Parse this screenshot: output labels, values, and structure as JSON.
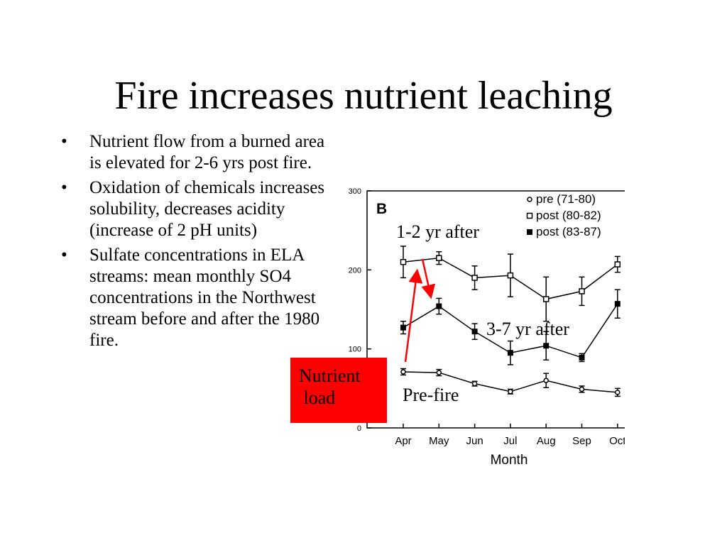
{
  "slide": {
    "title": "Fire increases nutrient leaching",
    "bullets": [
      "Nutrient flow from a burned area is elevated for 2-6 yrs post fire.",
      "Oxidation of chemicals increases solubility, decreases acidity (increase of 2 pH units)",
      "Sulfate concentrations in ELA streams: mean monthly SO4 concentrations in the Northwest stream before and after the 1980 fire."
    ],
    "nutrient_load_label": "Nutrient\n load"
  },
  "chart_data": {
    "type": "line",
    "panel_label": "B",
    "xlabel": "Month",
    "ylabel": "",
    "categories": [
      "Apr",
      "May",
      "Jun",
      "Jul",
      "Aug",
      "Sep",
      "Oct"
    ],
    "yticks": [
      0,
      100,
      200,
      300
    ],
    "ylim": [
      0,
      300
    ],
    "grid": false,
    "legend_position": "top-right",
    "series": [
      {
        "name": "pre (71-80)",
        "marker": "open-small",
        "values": [
          71,
          70,
          56,
          46,
          60,
          49,
          45
        ],
        "errors": [
          4,
          4,
          3,
          3,
          9,
          4,
          5
        ]
      },
      {
        "name": "post (80-82)",
        "marker": "open-square",
        "values": [
          210,
          215,
          190,
          193,
          163,
          173,
          207
        ],
        "errors": [
          20,
          8,
          15,
          27,
          28,
          18,
          10
        ]
      },
      {
        "name": "post (83-87)",
        "marker": "filled-square",
        "values": [
          127,
          154,
          122,
          95,
          104,
          89,
          157
        ],
        "errors": [
          8,
          10,
          10,
          15,
          18,
          5,
          18
        ]
      }
    ],
    "annotations": [
      {
        "text": "1-2 yr after",
        "series": "post (80-82)"
      },
      {
        "text": "3-7 yr after",
        "series": "post (83-87)"
      },
      {
        "text": "Pre-fire",
        "series": "pre (71-80)"
      }
    ],
    "arrow_color": "#ff0000"
  }
}
